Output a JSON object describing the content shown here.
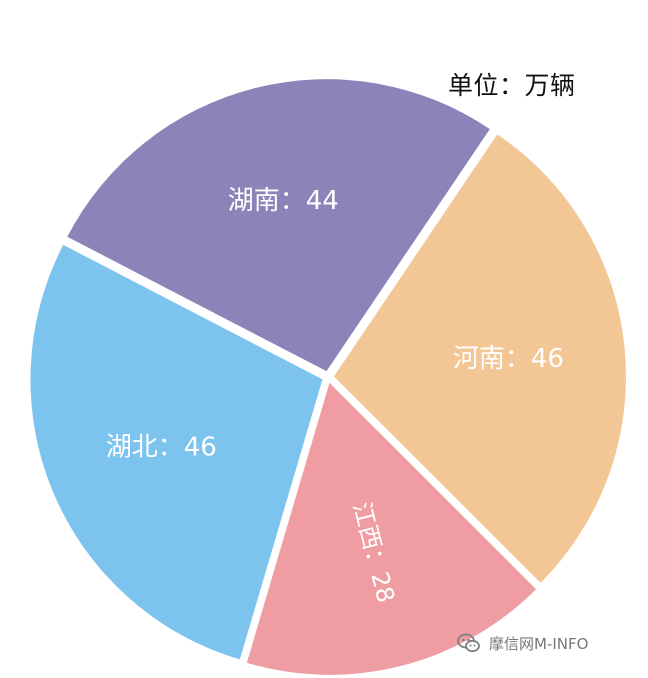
{
  "unit_label": "单位：万辆",
  "watermark": {
    "text": "摩信网M-INFO",
    "icon": "wechat-icon"
  },
  "chart_data": {
    "type": "pie",
    "title": "",
    "unit": "万辆",
    "slices": [
      {
        "label": "河南",
        "value": 46,
        "display": "河南：46",
        "color": "#F3C795"
      },
      {
        "label": "江西",
        "value": 28,
        "display": "江西：28",
        "color": "#EF9DA3"
      },
      {
        "label": "湖北",
        "value": 46,
        "display": "湖北：46",
        "color": "#7CC3EE"
      },
      {
        "label": "湖南",
        "value": 44,
        "display": "湖南：44",
        "color": "#8B84B8"
      }
    ]
  }
}
